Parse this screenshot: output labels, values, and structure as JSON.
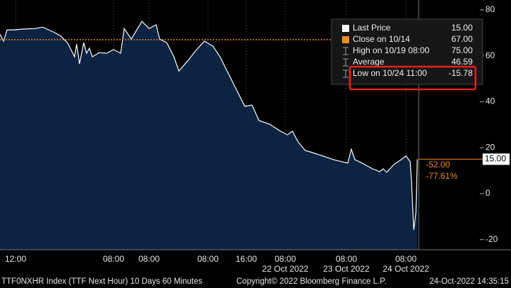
{
  "chart_data": {
    "type": "area",
    "x": [
      0,
      5,
      10,
      20,
      30,
      50,
      60,
      75,
      85,
      95,
      100,
      105,
      108,
      112,
      118,
      122,
      126,
      130,
      140,
      150,
      160,
      170,
      175,
      185,
      200,
      210,
      220,
      225,
      235,
      245,
      252,
      265,
      275,
      288,
      300,
      310,
      320,
      335,
      345,
      355,
      365,
      380,
      395,
      405,
      412,
      420,
      430,
      440,
      455,
      470,
      490,
      495,
      500,
      510,
      525,
      535,
      540,
      545,
      555,
      565,
      572,
      578,
      580,
      583,
      586,
      588
    ],
    "values": [
      69.4,
      66.4,
      71.3,
      71.3,
      71.6,
      71.9,
      72.5,
      70.4,
      68.8,
      65.7,
      62.7,
      59.6,
      65.1,
      56.5,
      65.7,
      61.1,
      63.3,
      59.6,
      61.4,
      61.1,
      62.7,
      61.1,
      71.9,
      67.3,
      75.0,
      71.9,
      73.5,
      67.3,
      65.7,
      59.6,
      53.4,
      58.0,
      62.0,
      66.4,
      64.2,
      59.6,
      53.4,
      44.1,
      38.0,
      38.6,
      31.8,
      30.2,
      27.2,
      25.6,
      27.2,
      22.5,
      18.8,
      17.9,
      16.4,
      14.8,
      13.3,
      19.4,
      14.8,
      13.3,
      10.8,
      9.6,
      10.8,
      9.3,
      12.7,
      14.8,
      16.4,
      13.9,
      4.0,
      -15.78,
      -8.3,
      15.0
    ],
    "color": "#ffffff",
    "fill": "#0c2342",
    "xlim": [
      0,
      590
    ],
    "xticks": [
      {
        "value": 22,
        "label": "12:00"
      },
      {
        "value": 160,
        "label": "08:00"
      },
      {
        "value": 210,
        "label": "08:00"
      },
      {
        "value": 293,
        "label": "08:00"
      },
      {
        "value": 347,
        "label": "16:00"
      },
      {
        "value": 402,
        "label": "08:00"
      },
      {
        "value": 488,
        "label": "08:00"
      },
      {
        "value": 572,
        "label": "08:00"
      }
    ],
    "date_labels": [
      {
        "value": 402,
        "label": "22 Oct 2022"
      },
      {
        "value": 488,
        "label": "23 Oct 2022"
      },
      {
        "value": 572,
        "label": "24 Oct 2022"
      }
    ],
    "ylim": [
      -24.4,
      84.3
    ],
    "yticks": [
      80,
      60,
      40,
      20,
      0,
      -20
    ],
    "stats": [
      {
        "name": "Last Price",
        "value": 15,
        "label": "15.00"
      },
      {
        "name": "Close on 10/14",
        "value": 67,
        "label": "67.00"
      },
      {
        "name": "High on 10/19 08:00",
        "value": 75,
        "label": "75.00"
      },
      {
        "name": "Average",
        "value": 46.59,
        "label": "46.59"
      },
      {
        "name": "Low on 10/24 11:00",
        "value": -15.78,
        "label": "-15.78"
      }
    ],
    "change": "-52.00",
    "change_pct": "-77.61%",
    "footer": [
      "TTF0NXHR Index (TTF Next Hour) 10 Days 60 Minutes",
      "Copyright© 2022 Bloomberg Finance L.P.",
      "24-Oct-2022 14:35:15"
    ]
  }
}
